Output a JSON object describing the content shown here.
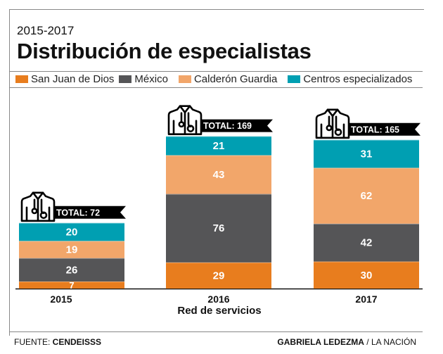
{
  "header": {
    "subtitle": "2015-2017",
    "title": "Distribución de especialistas"
  },
  "footer": {
    "source_label": "FUENTE: ",
    "source_value": "CENDEISSS",
    "credit_author": "GABRIELA LEDEZMA",
    "credit_outlet": " / LA NACIÓN"
  },
  "colors": {
    "san_juan": "#e87d1e",
    "mexico": "#555557",
    "calderon": "#f2a66a",
    "centros": "#009fb2",
    "badge": "#000000"
  },
  "chart_data": {
    "type": "bar",
    "stacked": true,
    "title": "Distribución de especialistas",
    "subtitle": "2015-2017",
    "xlabel": "Red de servicios",
    "ylabel": "",
    "categories": [
      "2015",
      "2016",
      "2017"
    ],
    "series": [
      {
        "name": "San Juan de Dios",
        "color": "#e87d1e",
        "values": [
          7,
          29,
          30
        ]
      },
      {
        "name": "México",
        "color": "#555557",
        "values": [
          26,
          76,
          42
        ]
      },
      {
        "name": "Calderón Guardia",
        "color": "#f2a66a",
        "values": [
          19,
          43,
          62
        ]
      },
      {
        "name": "Centros especializados",
        "color": "#009fb2",
        "values": [
          20,
          21,
          31
        ]
      }
    ],
    "totals": [
      72,
      169,
      165
    ],
    "total_label_prefix": "TOTAL: ",
    "legend_position": "top",
    "grid": false,
    "icon": "doctor-coat-icon"
  }
}
